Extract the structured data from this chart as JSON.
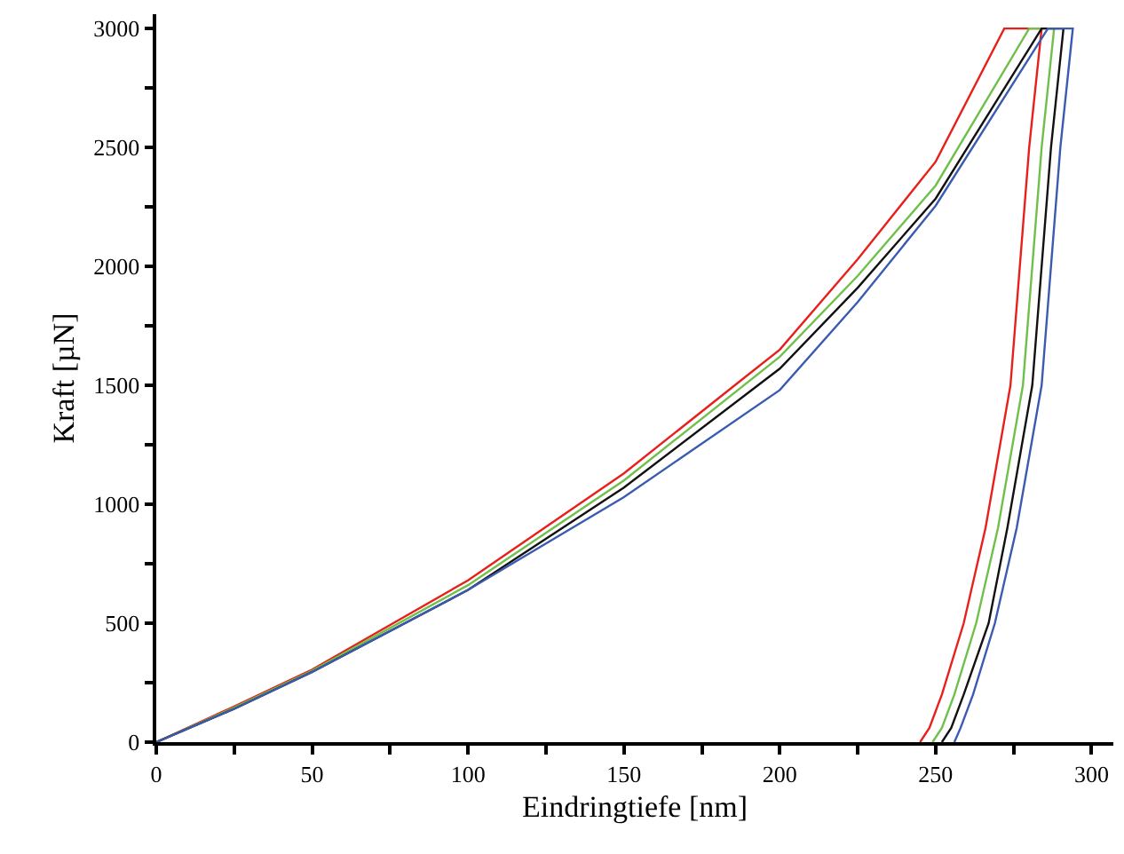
{
  "chart_data": {
    "type": "line",
    "xlabel": "Eindringtiefe [nm]",
    "ylabel": "Kraft [µN]",
    "xlim": [
      0,
      307
    ],
    "ylim": [
      0,
      3060
    ],
    "xticks": [
      0,
      {
        "value": 25,
        "label": null
      },
      50,
      {
        "value": 75,
        "label": null
      },
      100,
      {
        "value": 125,
        "label": null
      },
      150,
      {
        "value": 175,
        "label": null
      },
      200,
      {
        "value": 225,
        "label": null
      },
      250,
      {
        "value": 275,
        "label": null
      },
      300
    ],
    "yticks": [
      0,
      {
        "value": 250,
        "label": null
      },
      500,
      {
        "value": 750,
        "label": null
      },
      1000,
      {
        "value": 1250,
        "label": null
      },
      1500,
      {
        "value": 1750,
        "label": null
      },
      2000,
      {
        "value": 2250,
        "label": null
      },
      2500,
      {
        "value": 2750,
        "label": null
      },
      3000
    ],
    "marker": "none",
    "line_style": "solid",
    "series": [
      {
        "color": "#e8201c",
        "x": [
          0,
          25,
          50,
          100,
          150,
          187,
          200,
          225,
          250,
          272,
          284,
          280,
          274,
          266,
          259,
          252,
          248,
          245
        ],
        "values": [
          0,
          150,
          305,
          680,
          1130,
          1515,
          1650,
          2030,
          2440,
          3000,
          3000,
          2500,
          1500,
          900,
          500,
          200,
          60,
          0
        ]
      },
      {
        "color": "#6fc04a",
        "x": [
          0,
          25,
          50,
          100,
          150,
          200,
          225,
          250,
          280,
          288,
          284,
          278,
          270,
          263,
          256,
          252,
          249
        ],
        "values": [
          0,
          145,
          300,
          660,
          1100,
          1620,
          1960,
          2340,
          3000,
          3000,
          2500,
          1500,
          900,
          500,
          200,
          60,
          0
        ]
      },
      {
        "color": "#111111",
        "x": [
          0,
          25,
          50,
          100,
          150,
          200,
          225,
          250,
          284,
          291,
          287,
          281,
          273,
          267,
          259,
          255,
          252
        ],
        "values": [
          0,
          140,
          295,
          640,
          1070,
          1570,
          1910,
          2285,
          3000,
          3000,
          2500,
          1500,
          900,
          500,
          200,
          60,
          0
        ]
      },
      {
        "color": "#3a5bb0",
        "x": [
          0,
          25,
          50,
          100,
          150,
          200,
          225,
          250,
          286,
          294,
          290,
          284,
          276,
          269,
          262,
          258,
          256
        ],
        "values": [
          0,
          140,
          295,
          640,
          1030,
          1480,
          1850,
          2255,
          3000,
          3000,
          2500,
          1500,
          900,
          500,
          200,
          60,
          0
        ]
      }
    ]
  }
}
